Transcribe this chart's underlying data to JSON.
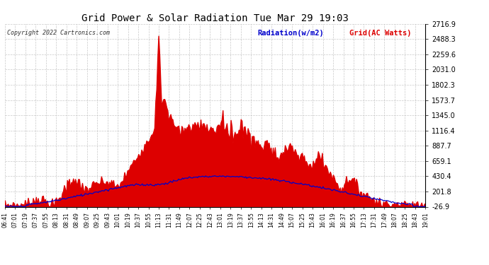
{
  "title": "Grid Power & Solar Radiation Tue Mar 29 19:03",
  "copyright_text": "Copyright 2022 Cartronics.com",
  "legend_radiation": "Radiation(w/m2)",
  "legend_grid": "Grid(AC Watts)",
  "y_ticks": [
    2716.9,
    2488.3,
    2259.6,
    2031.0,
    1802.3,
    1573.7,
    1345.0,
    1116.4,
    887.7,
    659.1,
    430.4,
    201.8,
    -26.9
  ],
  "y_min": -26.9,
  "y_max": 2716.9,
  "background_color": "#ffffff",
  "grid_color": "#bbbbbb",
  "fill_color": "#dd0000",
  "line_color_radiation": "#0000cc",
  "x_labels": [
    "06:41",
    "07:01",
    "07:19",
    "07:37",
    "07:55",
    "08:13",
    "08:31",
    "08:49",
    "09:07",
    "09:25",
    "09:43",
    "10:01",
    "10:19",
    "10:37",
    "10:55",
    "11:13",
    "11:31",
    "11:49",
    "12:07",
    "12:25",
    "12:43",
    "13:01",
    "13:19",
    "13:37",
    "13:55",
    "14:13",
    "14:31",
    "14:49",
    "15:07",
    "15:25",
    "15:43",
    "16:01",
    "16:19",
    "16:37",
    "16:55",
    "17:13",
    "17:31",
    "17:49",
    "18:07",
    "18:25",
    "18:43",
    "19:01"
  ]
}
